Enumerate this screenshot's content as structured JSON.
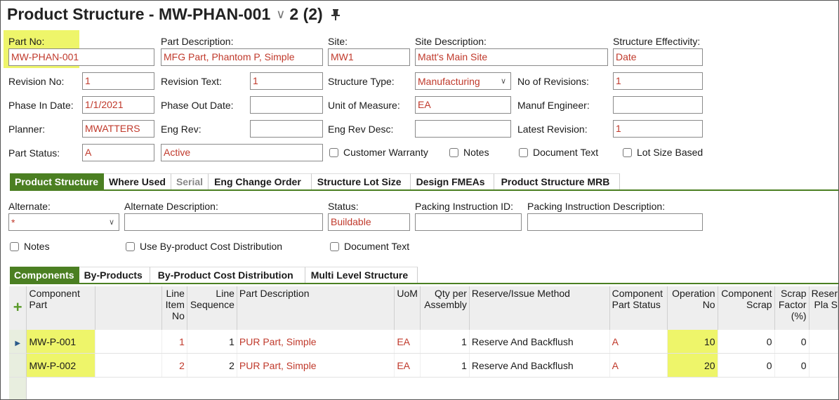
{
  "header": {
    "title": "Product Structure - MW-PHAN-001",
    "revision": "2 (2)",
    "chevron_icon": "chevron-down-icon",
    "pin_icon": "pin-icon"
  },
  "form": {
    "part_no": {
      "label": "Part No:",
      "value": "MW-PHAN-001"
    },
    "part_description": {
      "label": "Part Description:",
      "value": "MFG Part, Phantom P, Simple"
    },
    "site": {
      "label": "Site:",
      "value": "MW1"
    },
    "site_description": {
      "label": "Site Description:",
      "value": "Matt's Main Site"
    },
    "structure_effectivity": {
      "label": "Structure Effectivity:",
      "value": "Date"
    },
    "revision_no": {
      "label": "Revision No:",
      "value": "1"
    },
    "revision_text": {
      "label": "Revision Text:",
      "value": "1"
    },
    "structure_type": {
      "label": "Structure Type:",
      "value": "Manufacturing"
    },
    "no_of_revisions": {
      "label": "No of Revisions:",
      "value": "1"
    },
    "phase_in_date": {
      "label": "Phase In Date:",
      "value": "1/1/2021"
    },
    "phase_out_date": {
      "label": "Phase Out Date:",
      "value": ""
    },
    "unit_of_measure": {
      "label": "Unit of Measure:",
      "value": "EA"
    },
    "manuf_engineer": {
      "label": "Manuf Engineer:",
      "value": ""
    },
    "planner": {
      "label": "Planner:",
      "value": "MWATTERS"
    },
    "eng_rev": {
      "label": "Eng Rev:",
      "value": ""
    },
    "eng_rev_desc": {
      "label": "Eng Rev Desc:",
      "value": ""
    },
    "latest_revision": {
      "label": "Latest Revision:",
      "value": "1"
    },
    "part_status": {
      "label": "Part Status:",
      "value": "A",
      "desc": "Active"
    },
    "checkboxes": {
      "customer_warranty": "Customer Warranty",
      "notes": "Notes",
      "document_text": "Document Text",
      "lot_size_based": "Lot Size Based"
    }
  },
  "tabs": [
    "Product Structure",
    "Where Used",
    "Serial",
    "Eng Change Order",
    "Structure Lot Size",
    "Design FMEAs",
    "Product Structure MRB"
  ],
  "alternate": {
    "alternate": {
      "label": "Alternate:",
      "value": "*"
    },
    "alternate_description": {
      "label": "Alternate Description:",
      "value": ""
    },
    "status": {
      "label": "Status:",
      "value": "Buildable"
    },
    "packing_instruction_id": {
      "label": "Packing Instruction ID:",
      "value": ""
    },
    "packing_instruction_description": {
      "label": "Packing Instruction Description:",
      "value": ""
    },
    "checkboxes": {
      "notes": "Notes",
      "use_byproduct": "Use By-product Cost Distribution",
      "document_text": "Document Text"
    }
  },
  "subtabs": [
    "Components",
    "By-Products",
    "By-Product Cost Distribution",
    "Multi Level Structure"
  ],
  "table": {
    "columns": {
      "component_part": "Component Part",
      "line_item_no": "Line Item No",
      "line_sequence": "Line Sequence",
      "part_description": "Part Description",
      "uom": "UoM",
      "qty_per_assembly": "Qty per Assembly",
      "reserve_issue_method": "Reserve/Issue Method",
      "component_part_status": "Component Part Status",
      "operation_no": "Operation No",
      "component_scrap": "Component Scrap",
      "scrap_factor": "Scrap Factor (%)",
      "reserve_planned": "Reser Pla S"
    },
    "rows": [
      {
        "component_part": "MW-P-001",
        "line_item_no": "1",
        "line_sequence": "1",
        "part_description": "PUR Part, Simple",
        "uom": "EA",
        "qty": "1",
        "method": "Reserve And Backflush",
        "status": "A",
        "operation_no": "10",
        "component_scrap": "0",
        "scrap_factor": "0"
      },
      {
        "component_part": "MW-P-002",
        "line_item_no": "2",
        "line_sequence": "2",
        "part_description": "PUR Part, Simple",
        "uom": "EA",
        "qty": "1",
        "method": "Reserve And Backflush",
        "status": "A",
        "operation_no": "20",
        "component_scrap": "0",
        "scrap_factor": "0"
      }
    ]
  },
  "colors": {
    "accent": "#4b7f22",
    "highlight": "#eef56a",
    "value_text": "#c0392b"
  }
}
